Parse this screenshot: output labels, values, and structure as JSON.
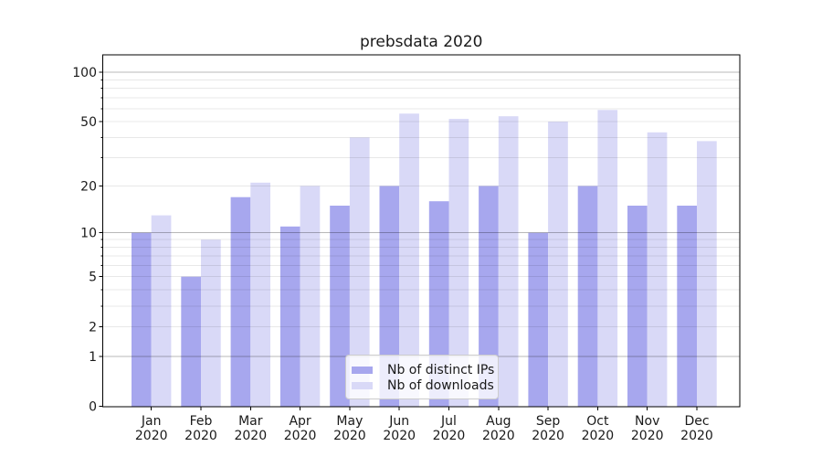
{
  "title": "prebsdata 2020",
  "chart_data": {
    "type": "bar",
    "title": "prebsdata 2020",
    "categories": [
      "Jan 2020",
      "Feb 2020",
      "Mar 2020",
      "Apr 2020",
      "May 2020",
      "Jun 2020",
      "Jul 2020",
      "Aug 2020",
      "Sep 2020",
      "Oct 2020",
      "Nov 2020",
      "Dec 2020"
    ],
    "series": [
      {
        "name": "Nb of distinct IPs",
        "color_key": "ips",
        "values": [
          10,
          5,
          17,
          11,
          15,
          20,
          16,
          20,
          10,
          20,
          15,
          15
        ]
      },
      {
        "name": "Nb of downloads",
        "color_key": "downloads",
        "values": [
          13,
          9,
          21,
          20,
          40,
          56,
          52,
          54,
          50,
          59,
          43,
          38
        ]
      }
    ],
    "xlabel": "",
    "ylabel": "",
    "yscale": "symlog (position proportional to ln(1+value))",
    "ylim": [
      0,
      127
    ],
    "yticks": [
      0,
      1,
      2,
      5,
      10,
      20,
      50,
      100
    ],
    "ytick_labels": [
      "0",
      "1",
      "2",
      "5",
      "10",
      "20",
      "50",
      "100"
    ],
    "minor_yticks": [
      3,
      4,
      6,
      7,
      8,
      9,
      30,
      40,
      60,
      70,
      80,
      90
    ],
    "major_grid_values": [
      1,
      10,
      100
    ],
    "grid": true,
    "legend": {
      "entries": [
        "Nb of distinct IPs",
        "Nb of downloads"
      ],
      "position": "lower center"
    }
  },
  "colors": {
    "ips": "#a7a7ee",
    "downloads": "#d9d9f7",
    "grid_minor": "rgba(0,0,0,0.09)",
    "grid_major": "rgba(0,0,0,0.28)",
    "axis": "#000000",
    "text": "#1a1a1a",
    "legend_border": "#cccccc",
    "legend_bg": "rgba(255,255,255,0.8)"
  }
}
